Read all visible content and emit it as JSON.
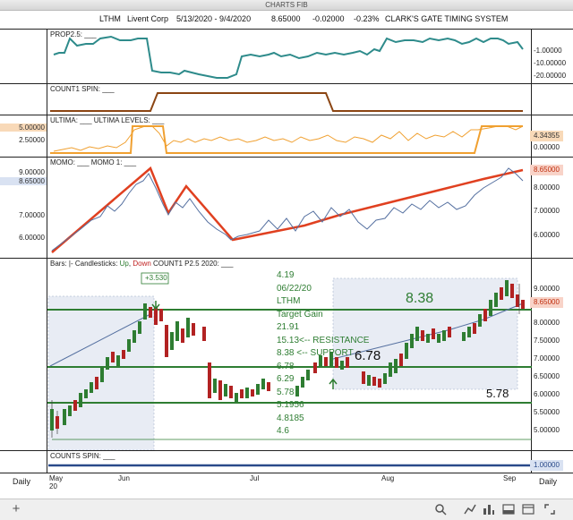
{
  "window_title": "CHARTS FIB",
  "header": {
    "symbol": "LTHM",
    "company": "Livent Corp",
    "date_range": "5/13/2020 - 9/4/2020",
    "price": "8.65000",
    "change": "-0.02000",
    "change_pct": "-0.23%",
    "system": "CLARK'S GATE TIMING SYSTEM"
  },
  "panes": {
    "prop": {
      "label": "PROP2.5: ___",
      "ticks": [
        "-1.00000",
        "-10.00000",
        "-20.00000"
      ]
    },
    "count1": {
      "label": "COUNT1 SPIN: ___"
    },
    "ultima": {
      "label": "ULTIMA: ___   ULTIMA LEVELS: ___",
      "left_values": [
        "5.00000",
        "2.50000"
      ],
      "ticks": [
        "4.34355",
        "0.00000"
      ]
    },
    "momo": {
      "label": "MOMO: ___   MOMO 1: ___",
      "left_values": [
        "9.00000",
        "8.65000",
        "7.00000",
        "6.00000"
      ],
      "ticks": [
        "8.65000",
        "8.00000",
        "7.00000",
        "6.00000"
      ]
    },
    "main": {
      "label_prefix": "Bars: |-   Candlesticks: ",
      "label_up": "Up",
      "label_comma": ", ",
      "label_down": "Down",
      "label_suffix": "   COUNT1 P2.5 2020: ___",
      "ticks": [
        "9.00000",
        "8.65000",
        "8.00000",
        "7.50000",
        "7.00000",
        "6.50000",
        "6.00000",
        "5.50000",
        "5.00000"
      ],
      "annotation_box": "+3.530",
      "info_lines": [
        "4.19",
        "06/22/20",
        "LTHM",
        "Target Gain",
        "21.91",
        "15.13<-- RESISTANCE",
        "8.38 <-- SUPPORT",
        "6.78",
        "6.29",
        "5.78",
        "5.1956",
        "4.8185",
        "4.6"
      ],
      "big_labels": [
        "8.38",
        "6.78",
        "5.78"
      ]
    },
    "counts": {
      "label": "COUNTS SPIN: ___",
      "ticks": [
        "1.00000"
      ]
    }
  },
  "date_axis": {
    "left": "Daily",
    "right": "Daily",
    "labels": [
      "May",
      "20",
      "Jun",
      "Jul",
      "Aug",
      "Sep"
    ]
  },
  "colors": {
    "teal": "#2e8b8b",
    "brown": "#8b4513",
    "orange": "#f0a030",
    "red": "#e04020",
    "green": "#2e7d32",
    "blue": "#5570a0",
    "navy": "#2a4a8a"
  },
  "toolbar_icons": [
    "plus-icon",
    "search-icon",
    "ruler-icon",
    "line-tool-icon",
    "chart-icon",
    "panel-icon",
    "window-icon",
    "expand-icon"
  ]
}
